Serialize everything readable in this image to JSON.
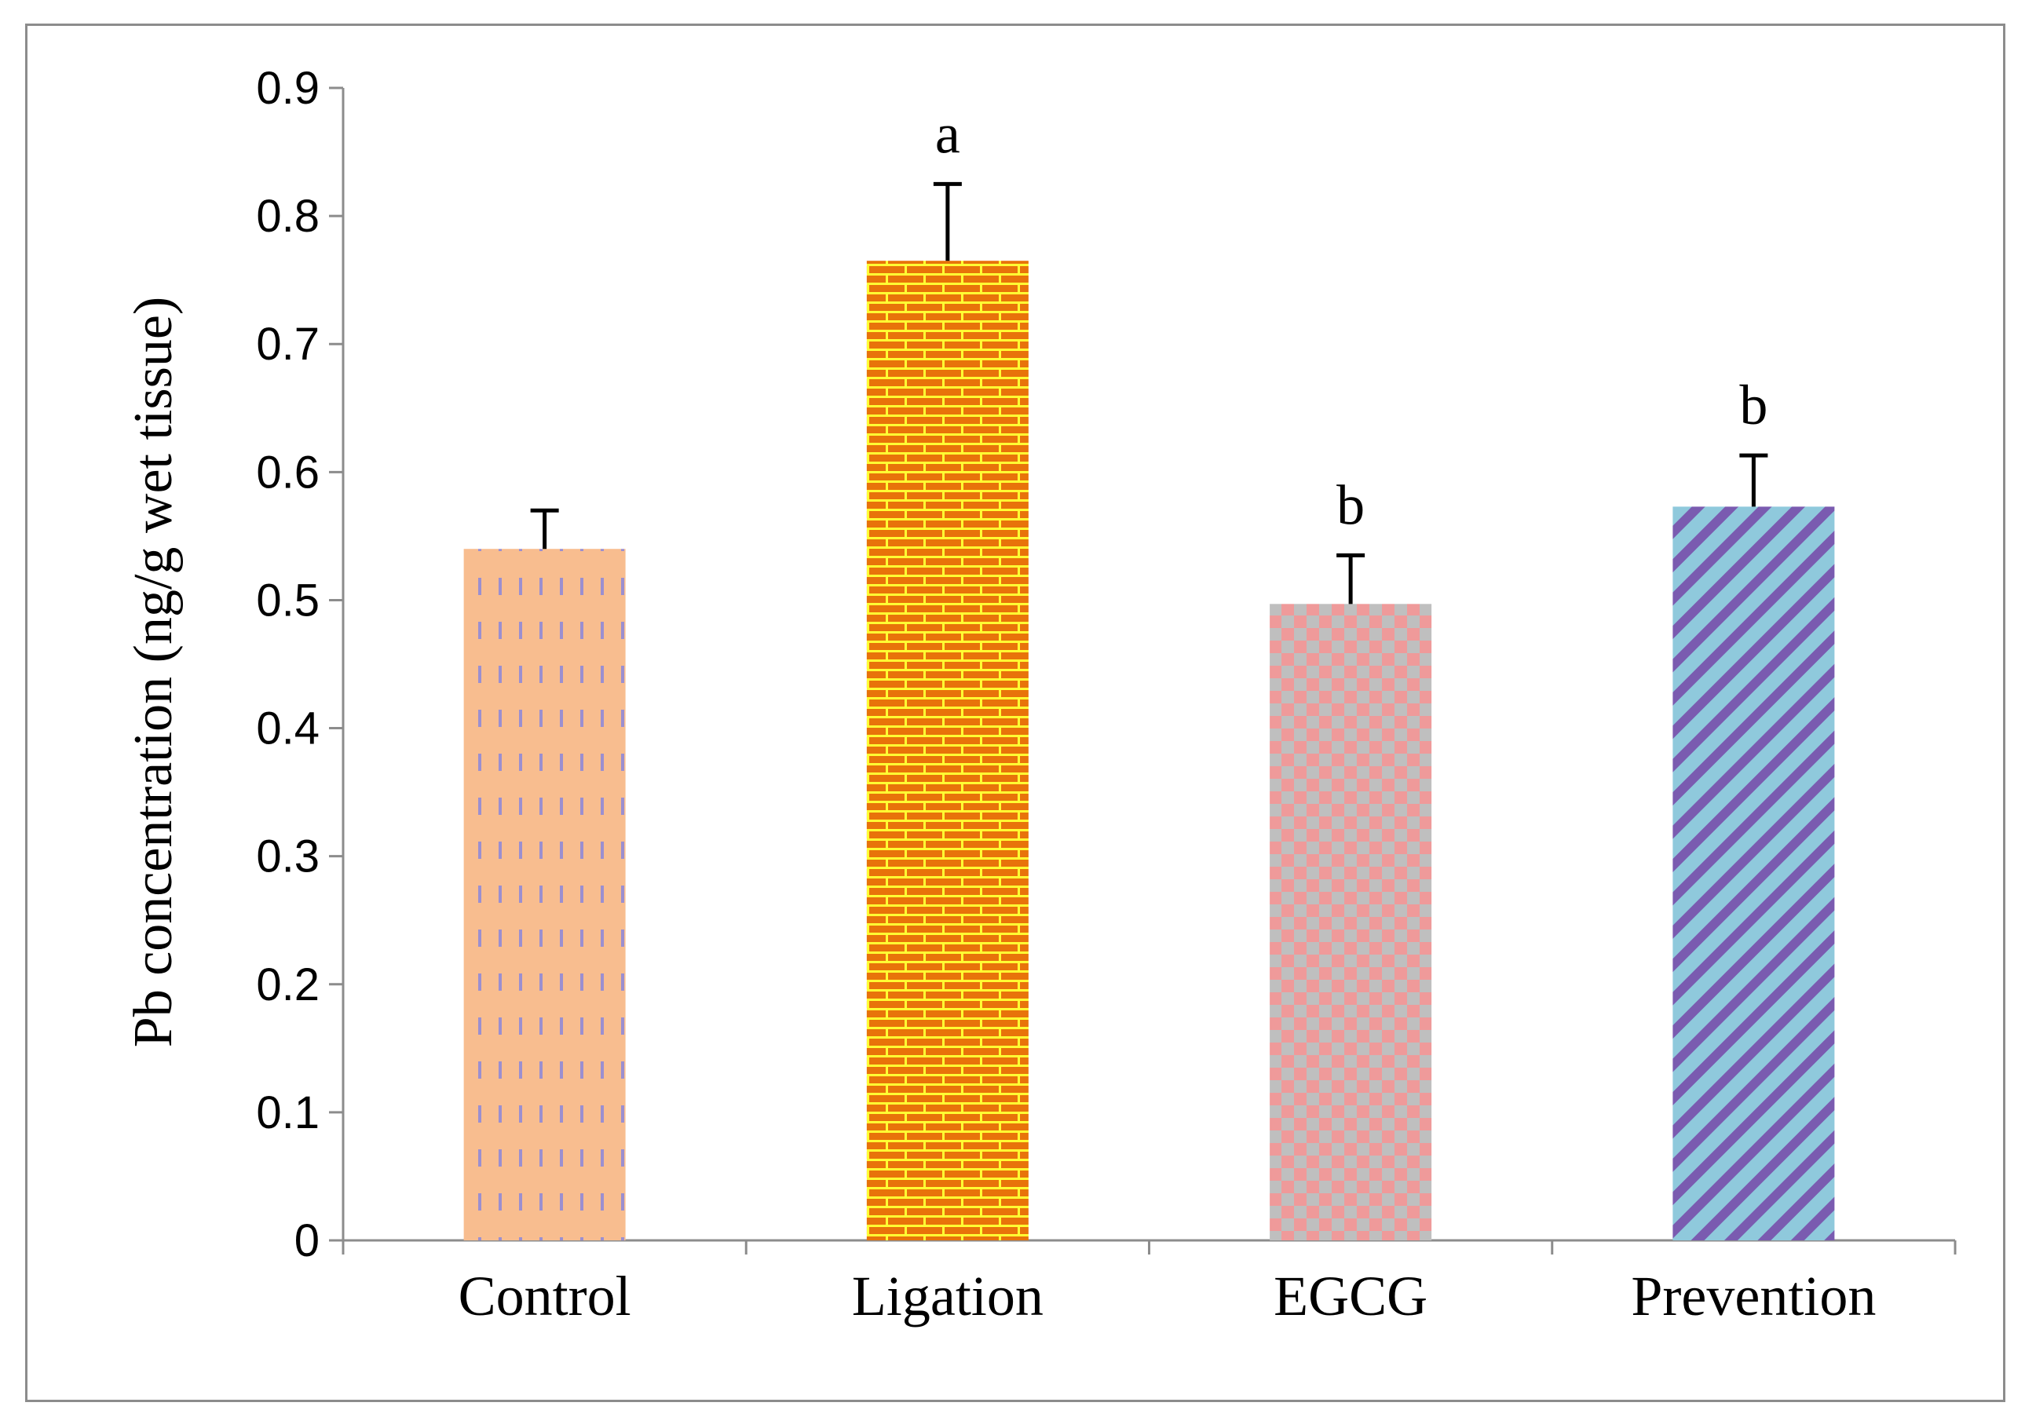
{
  "chart_data": {
    "type": "bar",
    "title": "",
    "xlabel": "",
    "ylabel": "Pb concentration (ng/g wet tissue)",
    "ylim": [
      0,
      0.9
    ],
    "yticks": [
      "0",
      "0.1",
      "0.2",
      "0.3",
      "0.4",
      "0.5",
      "0.6",
      "0.7",
      "0.8",
      "0.9"
    ],
    "categories": [
      "Control",
      "Ligation",
      "EGCG",
      "Prevention"
    ],
    "values": [
      0.54,
      0.765,
      0.497,
      0.573
    ],
    "errors": [
      0.03,
      0.06,
      0.038,
      0.04
    ],
    "significance": [
      "",
      "a",
      "b",
      "b"
    ],
    "grid": false,
    "legend": "none",
    "patterns": [
      "dashes",
      "bricks",
      "checker",
      "diagonal"
    ],
    "colors": {
      "control_fill": "#f8bd8f",
      "control_mark": "#9b8fd0",
      "ligation_fill": "#e8730a",
      "ligation_mark": "#ffff33",
      "egcg_a": "#bfbfbf",
      "egcg_b": "#ef9a9a",
      "prevention_a": "#8fc9dc",
      "prevention_b": "#7a5bb0",
      "axis": "#8c8c8c",
      "error": "#000000"
    }
  }
}
